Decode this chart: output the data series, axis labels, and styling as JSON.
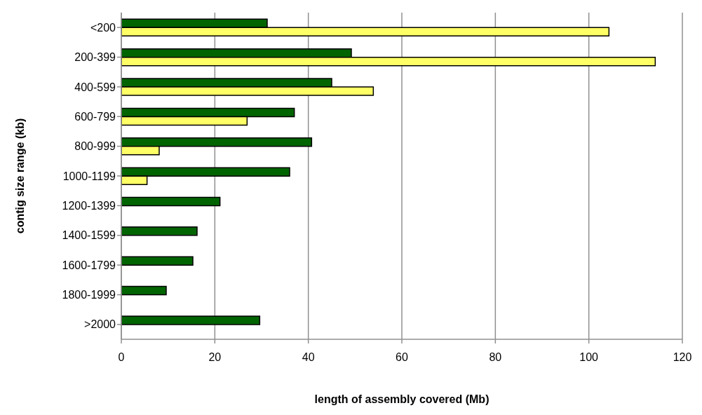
{
  "chart_data": {
    "type": "bar",
    "orientation": "horizontal",
    "xlabel": "length of assembly covered (Mb)",
    "ylabel": "contig size range (kb)",
    "categories": [
      "<200",
      "200-399",
      "400-599",
      "600-799",
      "800-999",
      "1000-1199",
      "1200-1399",
      "1400-1599",
      "1600-1799",
      "1800-1999",
      ">2000"
    ],
    "series": [
      {
        "color": "#006400",
        "values": [
          31.2,
          49.2,
          45.0,
          37.0,
          40.7,
          36.0,
          21.1,
          16.2,
          15.3,
          9.6,
          29.6
        ]
      },
      {
        "color": "#ffff66",
        "values": [
          104.3,
          114.2,
          53.9,
          26.9,
          8.1,
          5.5,
          null,
          null,
          null,
          null,
          null
        ]
      }
    ],
    "xlim": [
      0,
      120
    ],
    "xticks": [
      0,
      20,
      40,
      60,
      80,
      100,
      120
    ],
    "grid": "x",
    "legend": false
  }
}
